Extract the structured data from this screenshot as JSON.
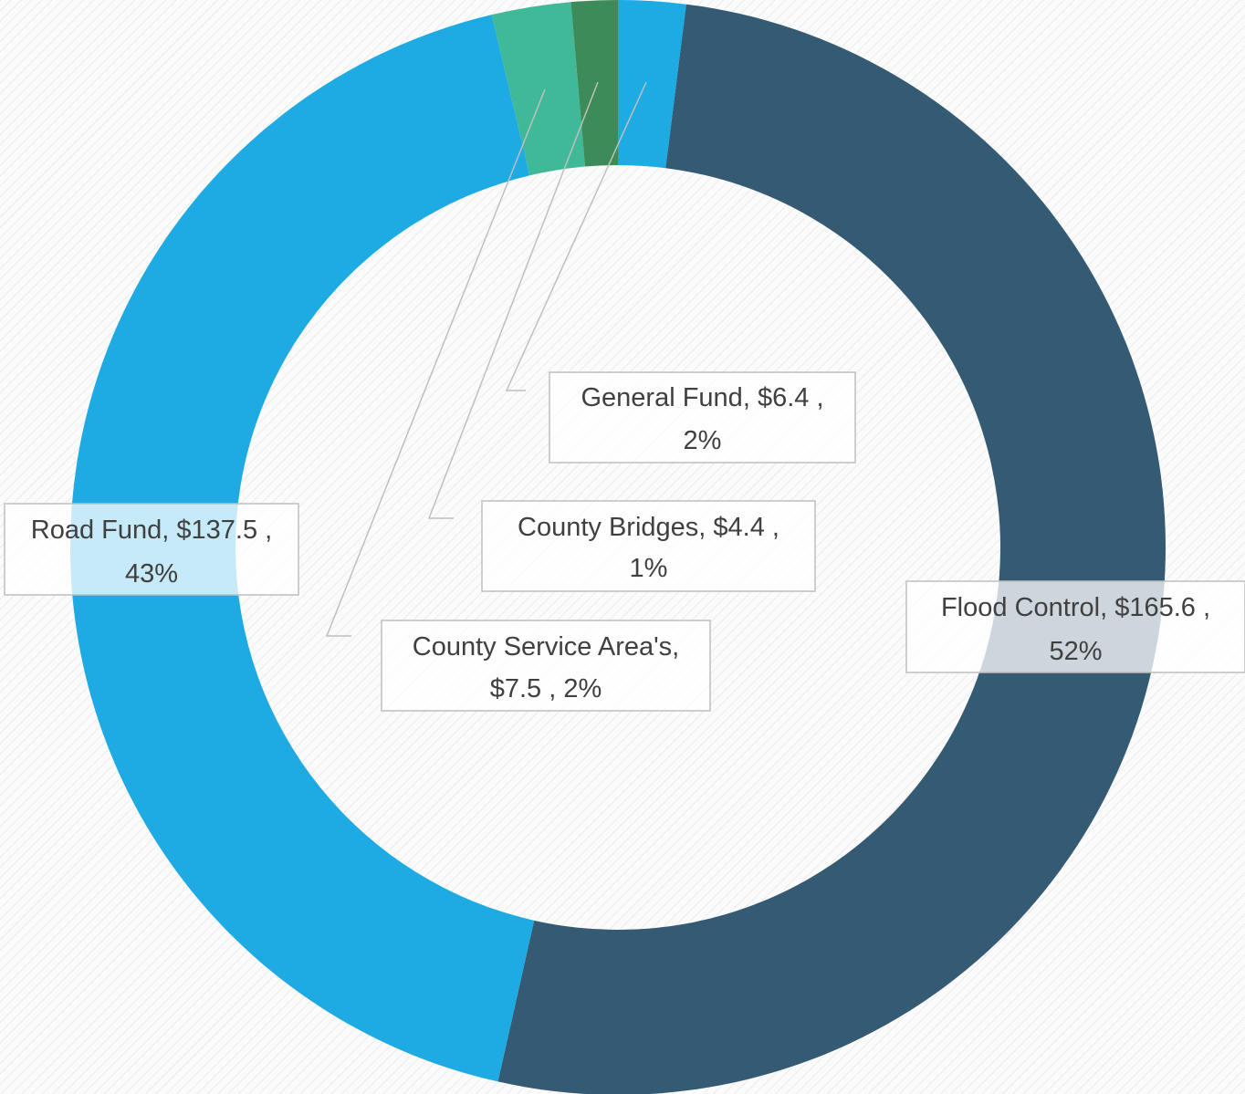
{
  "chart_data": {
    "type": "donut",
    "categories": [
      "General Fund",
      "Flood Control",
      "Road Fund",
      "County Service Area's",
      "County Bridges"
    ],
    "values": [
      6.4,
      165.6,
      137.5,
      7.5,
      4.4
    ],
    "value_labels": [
      "$6.4",
      "$165.6",
      "$137.5",
      "$7.5",
      "$4.4"
    ],
    "percents": [
      2,
      52,
      43,
      2,
      1
    ],
    "percent_labels": [
      "2%",
      "52%",
      "43%",
      "2%",
      "1%"
    ],
    "label_separator": ",",
    "colors": [
      "#1eaae2",
      "#345b73",
      "#1eaae2",
      "#40b999",
      "#3d8b58"
    ]
  }
}
